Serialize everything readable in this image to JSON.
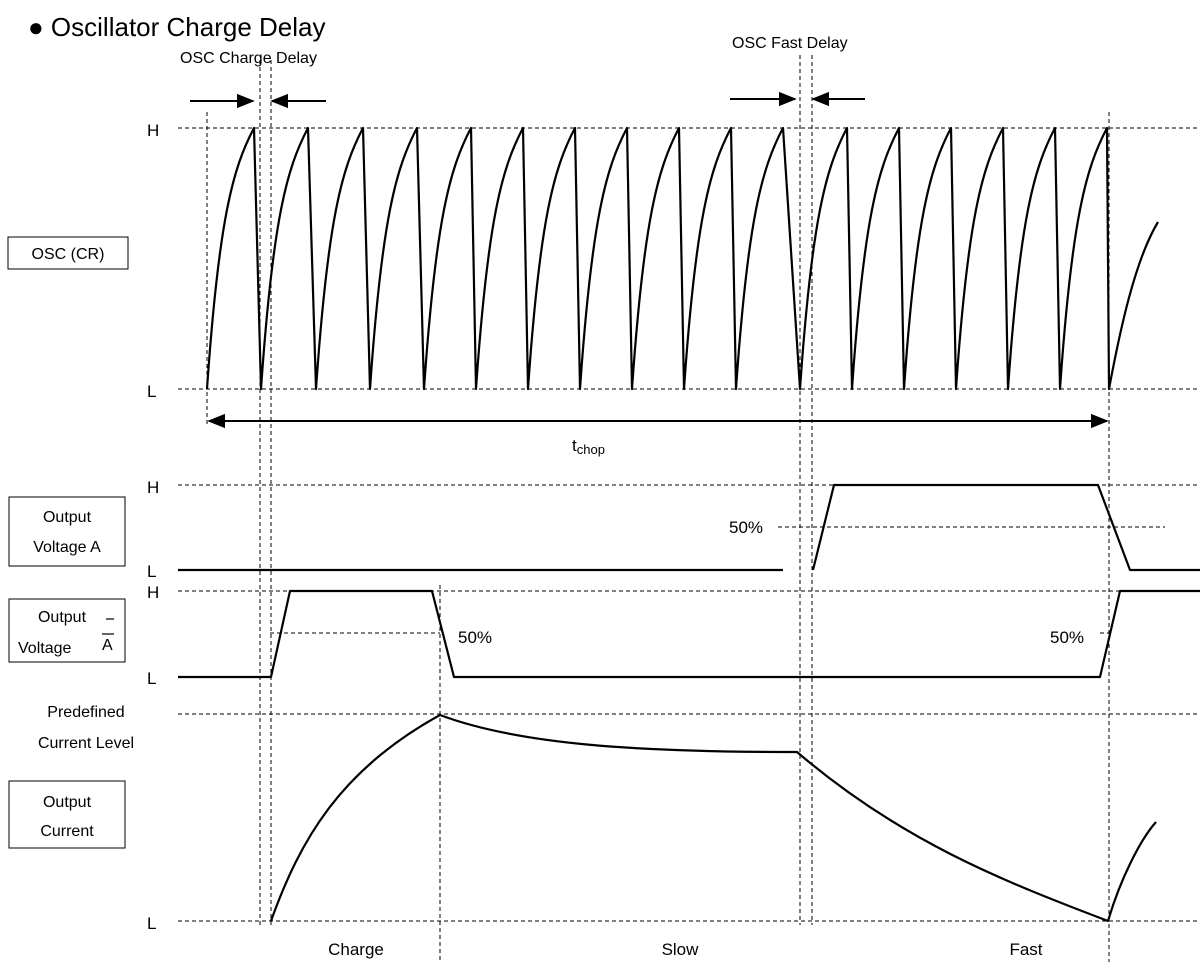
{
  "title": "● Oscillator Charge Delay",
  "annotations": {
    "osc_charge_delay": "OSC Charge Delay",
    "osc_fast_delay": "OSC Fast Delay",
    "tchop_main": "t",
    "tchop_sub": "chop",
    "fifty_a": "50%",
    "fifty_abar_left": "50%",
    "fifty_abar_right": "50%",
    "predefined_line1": "Predefined",
    "predefined_line2": "Current Level"
  },
  "levels": {
    "osc_h": "H",
    "osc_l": "L",
    "va_h": "H",
    "va_l": "L",
    "vab_h": "H",
    "vab_l": "L",
    "cur_l": "L"
  },
  "signals": {
    "osc": "OSC (CR)",
    "output_voltage_a_line1": "Output",
    "output_voltage_a_line2": "Voltage A",
    "output_voltage_abar_line1": "Output",
    "output_voltage_abar_line2": "Voltage",
    "output_voltage_abar_suffix": "A",
    "output_current_line1": "Output",
    "output_current_line2": "Current"
  },
  "phases": {
    "charge": "Charge",
    "slow": "Slow",
    "fast": "Fast"
  }
}
